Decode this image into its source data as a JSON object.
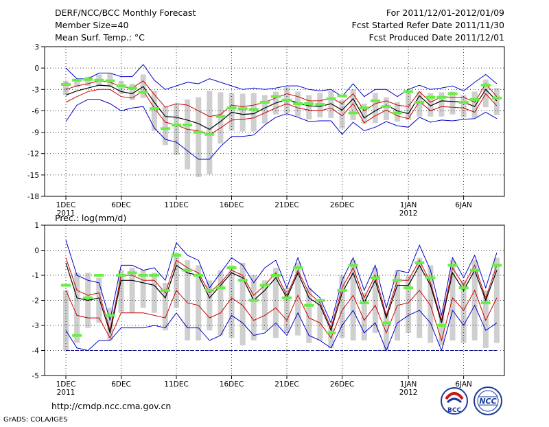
{
  "header": {
    "title": "DERF/NCC/BCC Monthly Forecast",
    "member_size": "Member Size=40",
    "variable": "Mean Surf. Temp.: °C",
    "forecast_period": "For 2011/12/01-2012/01/09",
    "refer_date": "Fcst Started Refer Date 2011/11/30",
    "produced_date": "Fcst Produced Date 2011/12/01"
  },
  "footer": {
    "url": "http://cmdp.ncc.cma.gov.cn",
    "grads": "GrADS: COLA/IGES",
    "logo_bcc": "BCC",
    "logo_ncc": "NCC"
  },
  "colors": {
    "envelope": "#0000cc",
    "spread": "#cc0000",
    "mean": "#000000",
    "box": "#cfcfcf",
    "marker": "#66ee44",
    "baseline": "#000088",
    "grid": "#000000"
  },
  "chart_data": [
    {
      "type": "line",
      "title": "Mean Surf. Temp.: °C",
      "xlabel": "",
      "ylabel": "°C",
      "ylim": [
        -18,
        3
      ],
      "yticks": [
        3,
        0,
        -3,
        -6,
        -9,
        -12,
        -15,
        -18
      ],
      "x_tick_labels": [
        "1DEC",
        "6DEC",
        "11DEC",
        "16DEC",
        "21DEC",
        "26DEC",
        "1JAN",
        "6JAN"
      ],
      "x_tick_years": [
        "2011",
        "",
        "",
        "",
        "",
        "",
        "2012",
        ""
      ],
      "x_tick_days": [
        1,
        6,
        11,
        16,
        21,
        26,
        32,
        37
      ],
      "days": [
        1,
        2,
        3,
        4,
        5,
        6,
        7,
        8,
        9,
        10,
        11,
        12,
        13,
        14,
        15,
        16,
        17,
        18,
        19,
        20,
        21,
        22,
        23,
        24,
        25,
        26,
        27,
        28,
        29,
        30,
        31,
        32,
        33,
        34,
        35,
        36,
        37,
        38,
        39,
        40
      ],
      "grid": true,
      "series": [
        {
          "name": "max",
          "values": [
            0,
            -1.5,
            -1.5,
            -0.7,
            -0.7,
            -1.2,
            -1.2,
            0.5,
            -1.7,
            -3,
            -2.5,
            -2,
            -2.2,
            -1.5,
            -2,
            -2.5,
            -3,
            -2.8,
            -3,
            -2.8,
            -2.5,
            -2.5,
            -3,
            -3.2,
            -3,
            -4,
            -2.2,
            -4,
            -3,
            -3,
            -4,
            -3,
            -2.4,
            -3,
            -2.8,
            -2.5,
            -3.2,
            -2,
            -0.9,
            -2.2
          ]
        },
        {
          "name": "upper",
          "values": [
            -3,
            -2.5,
            -2.2,
            -1.8,
            -2,
            -2.6,
            -2.8,
            -1.8,
            -3.7,
            -5.5,
            -5,
            -5.2,
            -6,
            -6.8,
            -6.5,
            -5.2,
            -5.4,
            -5.2,
            -4.8,
            -4.2,
            -3.6,
            -4,
            -4.6,
            -4.6,
            -4.2,
            -5,
            -3.6,
            -6,
            -5,
            -4.6,
            -5.2,
            -5.4,
            -3.3,
            -4.8,
            -4,
            -4.1,
            -4.1,
            -4.8,
            -2.2,
            -4
          ]
        },
        {
          "name": "mean",
          "values": [
            -3.8,
            -3.2,
            -2.8,
            -2.4,
            -2.5,
            -3.3,
            -3.6,
            -2.6,
            -4.8,
            -6.8,
            -6.9,
            -7.3,
            -7.8,
            -8.6,
            -7.5,
            -6.2,
            -6.5,
            -6.4,
            -5.6,
            -4.9,
            -4.4,
            -4.9,
            -5.3,
            -5.4,
            -5,
            -5.9,
            -4.3,
            -7,
            -6,
            -5.2,
            -6,
            -6.4,
            -3.9,
            -5.3,
            -4.6,
            -4.7,
            -4.8,
            -5.4,
            -3,
            -4.6
          ]
        },
        {
          "name": "lower",
          "values": [
            -4.8,
            -4,
            -3.3,
            -3,
            -3,
            -4,
            -4.2,
            -3.2,
            -5.6,
            -7.6,
            -8,
            -8.6,
            -8.8,
            -9.4,
            -8.4,
            -7.3,
            -7.2,
            -7,
            -6.3,
            -5.6,
            -5,
            -5.6,
            -5.9,
            -6,
            -5.6,
            -6.7,
            -5,
            -7.7,
            -6.7,
            -5.9,
            -6.7,
            -7.1,
            -4.7,
            -6,
            -5.4,
            -5.5,
            -5.6,
            -6.2,
            -3.6,
            -5.3
          ]
        },
        {
          "name": "min",
          "values": [
            -7.5,
            -5.2,
            -4.4,
            -4.4,
            -5,
            -6,
            -5.6,
            -5.4,
            -8.4,
            -10,
            -10.4,
            -11.6,
            -12.8,
            -12.8,
            -11,
            -9.6,
            -9.6,
            -9.4,
            -8,
            -6.9,
            -6.4,
            -6.9,
            -7.5,
            -7.4,
            -7.4,
            -9.3,
            -7.6,
            -8.8,
            -8.3,
            -7.5,
            -8.1,
            -8.3,
            -6.9,
            -7.6,
            -7.3,
            -7.4,
            -7.2,
            -7.1,
            -6.2,
            -7.1
          ]
        },
        {
          "name": "box_top",
          "values": [
            -1.8,
            -1.5,
            -1.2,
            -0.9,
            -0.8,
            -1.8,
            -2.2,
            -0.9,
            -3.2,
            -5.4,
            -5.1,
            -4.4,
            -4.1,
            -3.2,
            -3.4,
            -3.5,
            -3.6,
            -3.5,
            -3.8,
            -3.3,
            -2.7,
            -3.3,
            -3.8,
            -3.5,
            -3.2,
            -4.5,
            -3,
            -5,
            -3.5,
            -4.1,
            -4.8,
            -3.5,
            -3.3,
            -3.5,
            -3.4,
            -3.3,
            -3.8,
            -3.3,
            -1.6,
            -2.8
          ]
        },
        {
          "name": "box_bottom",
          "values": [
            -3.8,
            -2.7,
            -2.5,
            -2.5,
            -2.7,
            -3.6,
            -4.5,
            -4.2,
            -8.8,
            -10.8,
            -12.2,
            -14.2,
            -15.3,
            -14.9,
            -10.6,
            -8.8,
            -8.9,
            -8.9,
            -7.8,
            -6.5,
            -6.3,
            -6.8,
            -7.2,
            -6.9,
            -7,
            -8.5,
            -7.3,
            -7.8,
            -7.7,
            -7.3,
            -7.5,
            -7.3,
            -6.8,
            -6.8,
            -6.8,
            -6.5,
            -6.9,
            -7,
            -5.5,
            -6.6
          ]
        },
        {
          "name": "observed",
          "values": [
            -2.3,
            -1.7,
            -1.6,
            -1.7,
            -1.8,
            -2.5,
            -2.8,
            -3.4,
            -5.7,
            -8.5,
            -8,
            -8,
            -9,
            -9.3,
            -6.8,
            -5.6,
            -5.7,
            -5.8,
            -4.8,
            -4,
            -4.5,
            -5,
            -5,
            -5.1,
            -4.3,
            -3.9,
            -6.3,
            -5.6,
            -4.6,
            -5.4,
            -6.3,
            -3.3,
            -4.8,
            -4.1,
            -4.1,
            -3.6,
            -4.8,
            -4.4,
            -2.4,
            -4.2
          ]
        }
      ]
    },
    {
      "type": "line",
      "title": "Prec.: log(mm/d)",
      "xlabel": "",
      "ylabel": "log(mm/d)",
      "ylim": [
        -5,
        1
      ],
      "yticks": [
        1,
        0,
        -1,
        -2,
        -3,
        -4,
        -5
      ],
      "x_tick_labels": [
        "1DEC",
        "6DEC",
        "11DEC",
        "16DEC",
        "21DEC",
        "26DEC",
        "1JAN",
        "6JAN"
      ],
      "x_tick_years": [
        "2011",
        "",
        "",
        "",
        "",
        "",
        "2012",
        ""
      ],
      "x_tick_days": [
        1,
        6,
        11,
        16,
        21,
        26,
        32,
        37
      ],
      "days": [
        1,
        2,
        3,
        4,
        5,
        6,
        7,
        8,
        9,
        10,
        11,
        12,
        13,
        14,
        15,
        16,
        17,
        18,
        19,
        20,
        21,
        22,
        23,
        24,
        25,
        26,
        27,
        28,
        29,
        30,
        31,
        32,
        33,
        34,
        35,
        36,
        37,
        38,
        39,
        40
      ],
      "grid": true,
      "baseline": -4,
      "series": [
        {
          "name": "max",
          "values": [
            0.4,
            -1,
            -1.2,
            -1.3,
            -2.8,
            -0.6,
            -0.6,
            -0.8,
            -0.7,
            -1.2,
            0.3,
            -0.2,
            -0.4,
            -1.5,
            -0.9,
            -0.3,
            -0.6,
            -1.3,
            -0.7,
            -0.4,
            -1.5,
            -0.3,
            -1.5,
            -1.9,
            -2.9,
            -1.2,
            -0.3,
            -1.6,
            -0.6,
            -2.3,
            -0.8,
            -0.9,
            0.2,
            -0.8,
            -2.6,
            -0.3,
            -1.1,
            -0.2,
            -1.5,
            -0.1
          ]
        },
        {
          "name": "upper",
          "values": [
            -0.3,
            -1.6,
            -1.8,
            -1.7,
            -3.2,
            -1,
            -1,
            -1.2,
            -1.2,
            -1.7,
            -0.4,
            -0.7,
            -0.9,
            -1.7,
            -1.3,
            -0.8,
            -1,
            -1.8,
            -1.4,
            -0.9,
            -1.8,
            -0.8,
            -1.7,
            -2.1,
            -3.1,
            -1.5,
            -0.7,
            -1.9,
            -1,
            -2.6,
            -1.2,
            -1.2,
            -0.4,
            -1.3,
            -2.8,
            -0.7,
            -1.4,
            -0.6,
            -1.9,
            -0.6
          ]
        },
        {
          "name": "mean",
          "values": [
            -0.5,
            -1.9,
            -2,
            -1.9,
            -3.3,
            -1.2,
            -1.2,
            -1.3,
            -1.4,
            -1.9,
            -0.6,
            -0.9,
            -1,
            -1.9,
            -1.4,
            -0.9,
            -1.1,
            -2,
            -1.6,
            -1.1,
            -1.9,
            -0.9,
            -1.9,
            -2.2,
            -3.2,
            -1.7,
            -0.9,
            -2.1,
            -1.2,
            -2.7,
            -1.4,
            -1.4,
            -0.6,
            -1.4,
            -2.9,
            -0.9,
            -1.6,
            -0.8,
            -2,
            -0.8
          ]
        },
        {
          "name": "lower",
          "values": [
            -1.6,
            -2.6,
            -2.7,
            -2.7,
            -3.5,
            -2.5,
            -2.5,
            -2.5,
            -2.6,
            -2.7,
            -1.6,
            -2.1,
            -2.2,
            -2.7,
            -2.5,
            -1.9,
            -2.2,
            -2.8,
            -2.6,
            -2.3,
            -2.8,
            -1.8,
            -2.7,
            -2.9,
            -3.5,
            -2.4,
            -1.8,
            -2.8,
            -2.2,
            -3.3,
            -2.2,
            -2.1,
            -1.6,
            -2.2,
            -3.6,
            -1.9,
            -2.4,
            -1.6,
            -2.8,
            -1.9
          ]
        },
        {
          "name": "min",
          "values": [
            -3.2,
            -3.9,
            -4,
            -3.6,
            -3.6,
            -3.1,
            -3.1,
            -3.1,
            -3,
            -3.1,
            -2.5,
            -3.1,
            -3.1,
            -3.6,
            -3.4,
            -2.6,
            -2.9,
            -3.4,
            -3.3,
            -2.9,
            -3.4,
            -2.5,
            -3.4,
            -3.6,
            -3.9,
            -3,
            -2.4,
            -3.3,
            -2.9,
            -4,
            -2.9,
            -2.6,
            -2.4,
            -2.9,
            -4,
            -2.4,
            -3,
            -2.2,
            -3.2,
            -2.9
          ]
        },
        {
          "name": "box_top",
          "values": [
            -1.6,
            -0.9,
            -0.9,
            -1.1,
            -2.3,
            -0.8,
            -0.7,
            -0.8,
            -0.9,
            -1.3,
            -0.1,
            -0.4,
            -0.6,
            -1.2,
            -0.8,
            -0.6,
            -0.5,
            -1,
            -1.2,
            -0.7,
            -1.5,
            -0.5,
            -1.5,
            -2,
            -3.1,
            -1,
            -0.4,
            -1.7,
            -0.7,
            -2.5,
            -0.8,
            -1,
            -0.3,
            -0.6,
            -2.6,
            -0.4,
            -1.2,
            -0.4,
            -1.6,
            -0.3
          ]
        },
        {
          "name": "box_bottom",
          "values": [
            -4,
            -3.7,
            -3.1,
            -2.9,
            -3.6,
            -2.5,
            -2.5,
            -2.3,
            -2.5,
            -3.2,
            -2.3,
            -3.6,
            -3.6,
            -3.2,
            -3.4,
            -3.5,
            -3.8,
            -3.6,
            -3.2,
            -3.5,
            -3.3,
            -3.4,
            -3.7,
            -3.6,
            -3.9,
            -3.5,
            -3.6,
            -3.6,
            -3.3,
            -4,
            -3.6,
            -3.3,
            -3.5,
            -3.7,
            -3.8,
            -3.6,
            -3.7,
            -3.6,
            -3.9,
            -3.7
          ]
        },
        {
          "name": "observed",
          "values": [
            -1.4,
            -3.4,
            -1.9,
            -1,
            -2.6,
            -1,
            -0.9,
            -1,
            -1,
            -1.6,
            -0.2,
            -0.8,
            -1,
            -1.6,
            -1.5,
            -0.7,
            -1.2,
            -2,
            -1.4,
            -1,
            -1.9,
            -0.7,
            -2.2,
            -2,
            -3.3,
            -1.6,
            -0.6,
            -2.1,
            -1.1,
            -2.9,
            -1.2,
            -1.5,
            -0.5,
            -1.1,
            -3,
            -0.6,
            -1.5,
            -0.8,
            -2.1,
            -0.6
          ]
        }
      ]
    }
  ]
}
